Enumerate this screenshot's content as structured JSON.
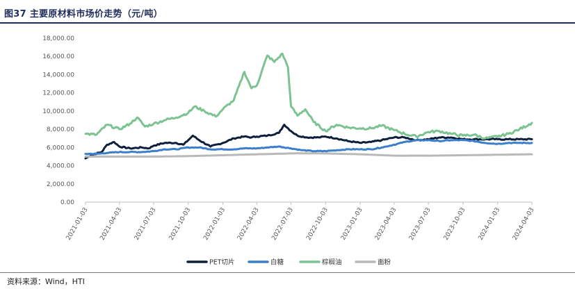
{
  "header": {
    "title": "图37 主要原材料市场价走势（元/吨）"
  },
  "footer": {
    "source": "资料来源：Wind，HTI"
  },
  "chart_data": {
    "type": "line",
    "title": "图37 主要原材料市场价走势（元/吨）",
    "xlabel": "",
    "ylabel": "",
    "ylim": [
      0,
      18000
    ],
    "xlim": [
      "2021-01-03",
      "2024-04-03"
    ],
    "yticks": [
      "0.00",
      "2,000.00",
      "4,000.00",
      "6,000.00",
      "8,000.00",
      "10,000.00",
      "12,000.00",
      "14,000.00",
      "16,000.00",
      "18,000.00"
    ],
    "xticks": [
      "2021-01-03",
      "2021-04-03",
      "2021-07-03",
      "2021-10-03",
      "2022-01-03",
      "2022-04-03",
      "2022-07-03",
      "2022-10-03",
      "2023-01-03",
      "2023-04-03",
      "2023-07-03",
      "2023-10-03",
      "2024-01-03",
      "2024-04-03"
    ],
    "grid": false,
    "legend": "bottom",
    "series": [
      {
        "name": "PET切片",
        "color": "#0d1f3c",
        "points": [
          [
            "2021-01-03",
            4800
          ],
          [
            "2021-01-20",
            5200
          ],
          [
            "2021-02-15",
            5500
          ],
          [
            "2021-03-01",
            6300
          ],
          [
            "2021-03-20",
            6600
          ],
          [
            "2021-04-03",
            6100
          ],
          [
            "2021-05-01",
            5900
          ],
          [
            "2021-06-01",
            6000
          ],
          [
            "2021-06-20",
            5900
          ],
          [
            "2021-07-03",
            6200
          ],
          [
            "2021-08-01",
            6500
          ],
          [
            "2021-09-01",
            6500
          ],
          [
            "2021-09-20",
            6300
          ],
          [
            "2021-10-03",
            6800
          ],
          [
            "2021-10-15",
            7300
          ],
          [
            "2021-11-01",
            6800
          ],
          [
            "2021-12-01",
            6100
          ],
          [
            "2022-01-03",
            6500
          ],
          [
            "2022-02-01",
            7000
          ],
          [
            "2022-03-01",
            7200
          ],
          [
            "2022-03-20",
            7100
          ],
          [
            "2022-04-03",
            7200
          ],
          [
            "2022-05-01",
            7300
          ],
          [
            "2022-06-01",
            7600
          ],
          [
            "2022-06-15",
            8500
          ],
          [
            "2022-07-03",
            7800
          ],
          [
            "2022-07-20",
            7300
          ],
          [
            "2022-08-15",
            7100
          ],
          [
            "2022-09-15",
            7100
          ],
          [
            "2022-10-03",
            7200
          ],
          [
            "2022-11-01",
            7000
          ],
          [
            "2022-12-01",
            6700
          ],
          [
            "2023-01-03",
            6500
          ],
          [
            "2023-02-01",
            6600
          ],
          [
            "2023-03-01",
            6800
          ],
          [
            "2023-04-03",
            7100
          ],
          [
            "2023-05-01",
            7100
          ],
          [
            "2023-06-01",
            6800
          ],
          [
            "2023-07-03",
            6900
          ],
          [
            "2023-08-01",
            7100
          ],
          [
            "2023-09-01",
            7100
          ],
          [
            "2023-10-03",
            6900
          ],
          [
            "2023-11-01",
            6900
          ],
          [
            "2023-12-01",
            6900
          ],
          [
            "2024-01-03",
            6900
          ],
          [
            "2024-02-01",
            6900
          ],
          [
            "2024-03-01",
            6900
          ],
          [
            "2024-04-03",
            6900
          ]
        ]
      },
      {
        "name": "白糖",
        "color": "#3b7ec9",
        "points": [
          [
            "2021-01-03",
            5300
          ],
          [
            "2021-02-01",
            5300
          ],
          [
            "2021-03-01",
            5400
          ],
          [
            "2021-04-03",
            5500
          ],
          [
            "2021-05-01",
            5500
          ],
          [
            "2021-06-01",
            5500
          ],
          [
            "2021-07-03",
            5600
          ],
          [
            "2021-08-01",
            5800
          ],
          [
            "2021-09-01",
            5800
          ],
          [
            "2021-10-03",
            6000
          ],
          [
            "2021-11-01",
            6000
          ],
          [
            "2021-12-01",
            5800
          ],
          [
            "2022-01-03",
            5800
          ],
          [
            "2022-02-01",
            5800
          ],
          [
            "2022-03-01",
            5900
          ],
          [
            "2022-04-03",
            5900
          ],
          [
            "2022-05-01",
            6000
          ],
          [
            "2022-06-01",
            6100
          ],
          [
            "2022-07-03",
            5900
          ],
          [
            "2022-08-01",
            5700
          ],
          [
            "2022-09-01",
            5600
          ],
          [
            "2022-10-03",
            5600
          ],
          [
            "2022-11-01",
            5700
          ],
          [
            "2022-12-01",
            5800
          ],
          [
            "2023-01-03",
            5800
          ],
          [
            "2023-02-01",
            5800
          ],
          [
            "2023-03-01",
            6000
          ],
          [
            "2023-04-03",
            6300
          ],
          [
            "2023-05-01",
            6600
          ],
          [
            "2023-06-01",
            6800
          ],
          [
            "2023-07-03",
            6800
          ],
          [
            "2023-08-01",
            6700
          ],
          [
            "2023-09-01",
            6800
          ],
          [
            "2023-10-03",
            6800
          ],
          [
            "2023-11-01",
            6700
          ],
          [
            "2023-12-01",
            6500
          ],
          [
            "2024-01-03",
            6400
          ],
          [
            "2024-02-01",
            6500
          ],
          [
            "2024-03-01",
            6500
          ],
          [
            "2024-04-03",
            6500
          ]
        ]
      },
      {
        "name": "棕榈油",
        "color": "#7cc391",
        "points": [
          [
            "2021-01-03",
            7500
          ],
          [
            "2021-02-01",
            7400
          ],
          [
            "2021-03-01",
            8500
          ],
          [
            "2021-04-03",
            8000
          ],
          [
            "2021-05-01",
            8600
          ],
          [
            "2021-05-20",
            9300
          ],
          [
            "2021-06-10",
            8300
          ],
          [
            "2021-07-03",
            8600
          ],
          [
            "2021-08-01",
            9000
          ],
          [
            "2021-09-01",
            9300
          ],
          [
            "2021-10-03",
            9800
          ],
          [
            "2021-10-20",
            10500
          ],
          [
            "2021-11-15",
            10000
          ],
          [
            "2021-12-15",
            9400
          ],
          [
            "2022-01-03",
            10200
          ],
          [
            "2022-02-01",
            11200
          ],
          [
            "2022-03-01",
            14300
          ],
          [
            "2022-03-20",
            12500
          ],
          [
            "2022-04-03",
            12800
          ],
          [
            "2022-05-01",
            16100
          ],
          [
            "2022-05-20",
            15400
          ],
          [
            "2022-06-10",
            16300
          ],
          [
            "2022-06-25",
            14800
          ],
          [
            "2022-07-03",
            10500
          ],
          [
            "2022-07-20",
            9500
          ],
          [
            "2022-08-10",
            10200
          ],
          [
            "2022-09-01",
            8800
          ],
          [
            "2022-10-03",
            7800
          ],
          [
            "2022-11-01",
            8500
          ],
          [
            "2022-12-01",
            8200
          ],
          [
            "2023-01-03",
            8100
          ],
          [
            "2023-02-01",
            8100
          ],
          [
            "2023-03-01",
            8400
          ],
          [
            "2023-04-03",
            7900
          ],
          [
            "2023-05-01",
            7500
          ],
          [
            "2023-06-01",
            7200
          ],
          [
            "2023-07-03",
            7700
          ],
          [
            "2023-08-01",
            7800
          ],
          [
            "2023-09-01",
            7500
          ],
          [
            "2023-10-03",
            7300
          ],
          [
            "2023-11-01",
            7400
          ],
          [
            "2023-12-01",
            7000
          ],
          [
            "2024-01-03",
            7200
          ],
          [
            "2024-02-01",
            7500
          ],
          [
            "2024-03-01",
            8000
          ],
          [
            "2024-04-03",
            8700
          ]
        ]
      },
      {
        "name": "面粉",
        "color": "#b9b9b9",
        "points": [
          [
            "2021-01-03",
            5000
          ],
          [
            "2021-04-03",
            5000
          ],
          [
            "2021-07-03",
            5000
          ],
          [
            "2021-10-03",
            5050
          ],
          [
            "2022-01-03",
            5150
          ],
          [
            "2022-04-03",
            5250
          ],
          [
            "2022-07-03",
            5350
          ],
          [
            "2022-10-03",
            5350
          ],
          [
            "2023-01-03",
            5250
          ],
          [
            "2023-04-03",
            5100
          ],
          [
            "2023-07-03",
            5100
          ],
          [
            "2023-10-03",
            5150
          ],
          [
            "2024-01-03",
            5200
          ],
          [
            "2024-04-03",
            5250
          ]
        ]
      }
    ]
  }
}
